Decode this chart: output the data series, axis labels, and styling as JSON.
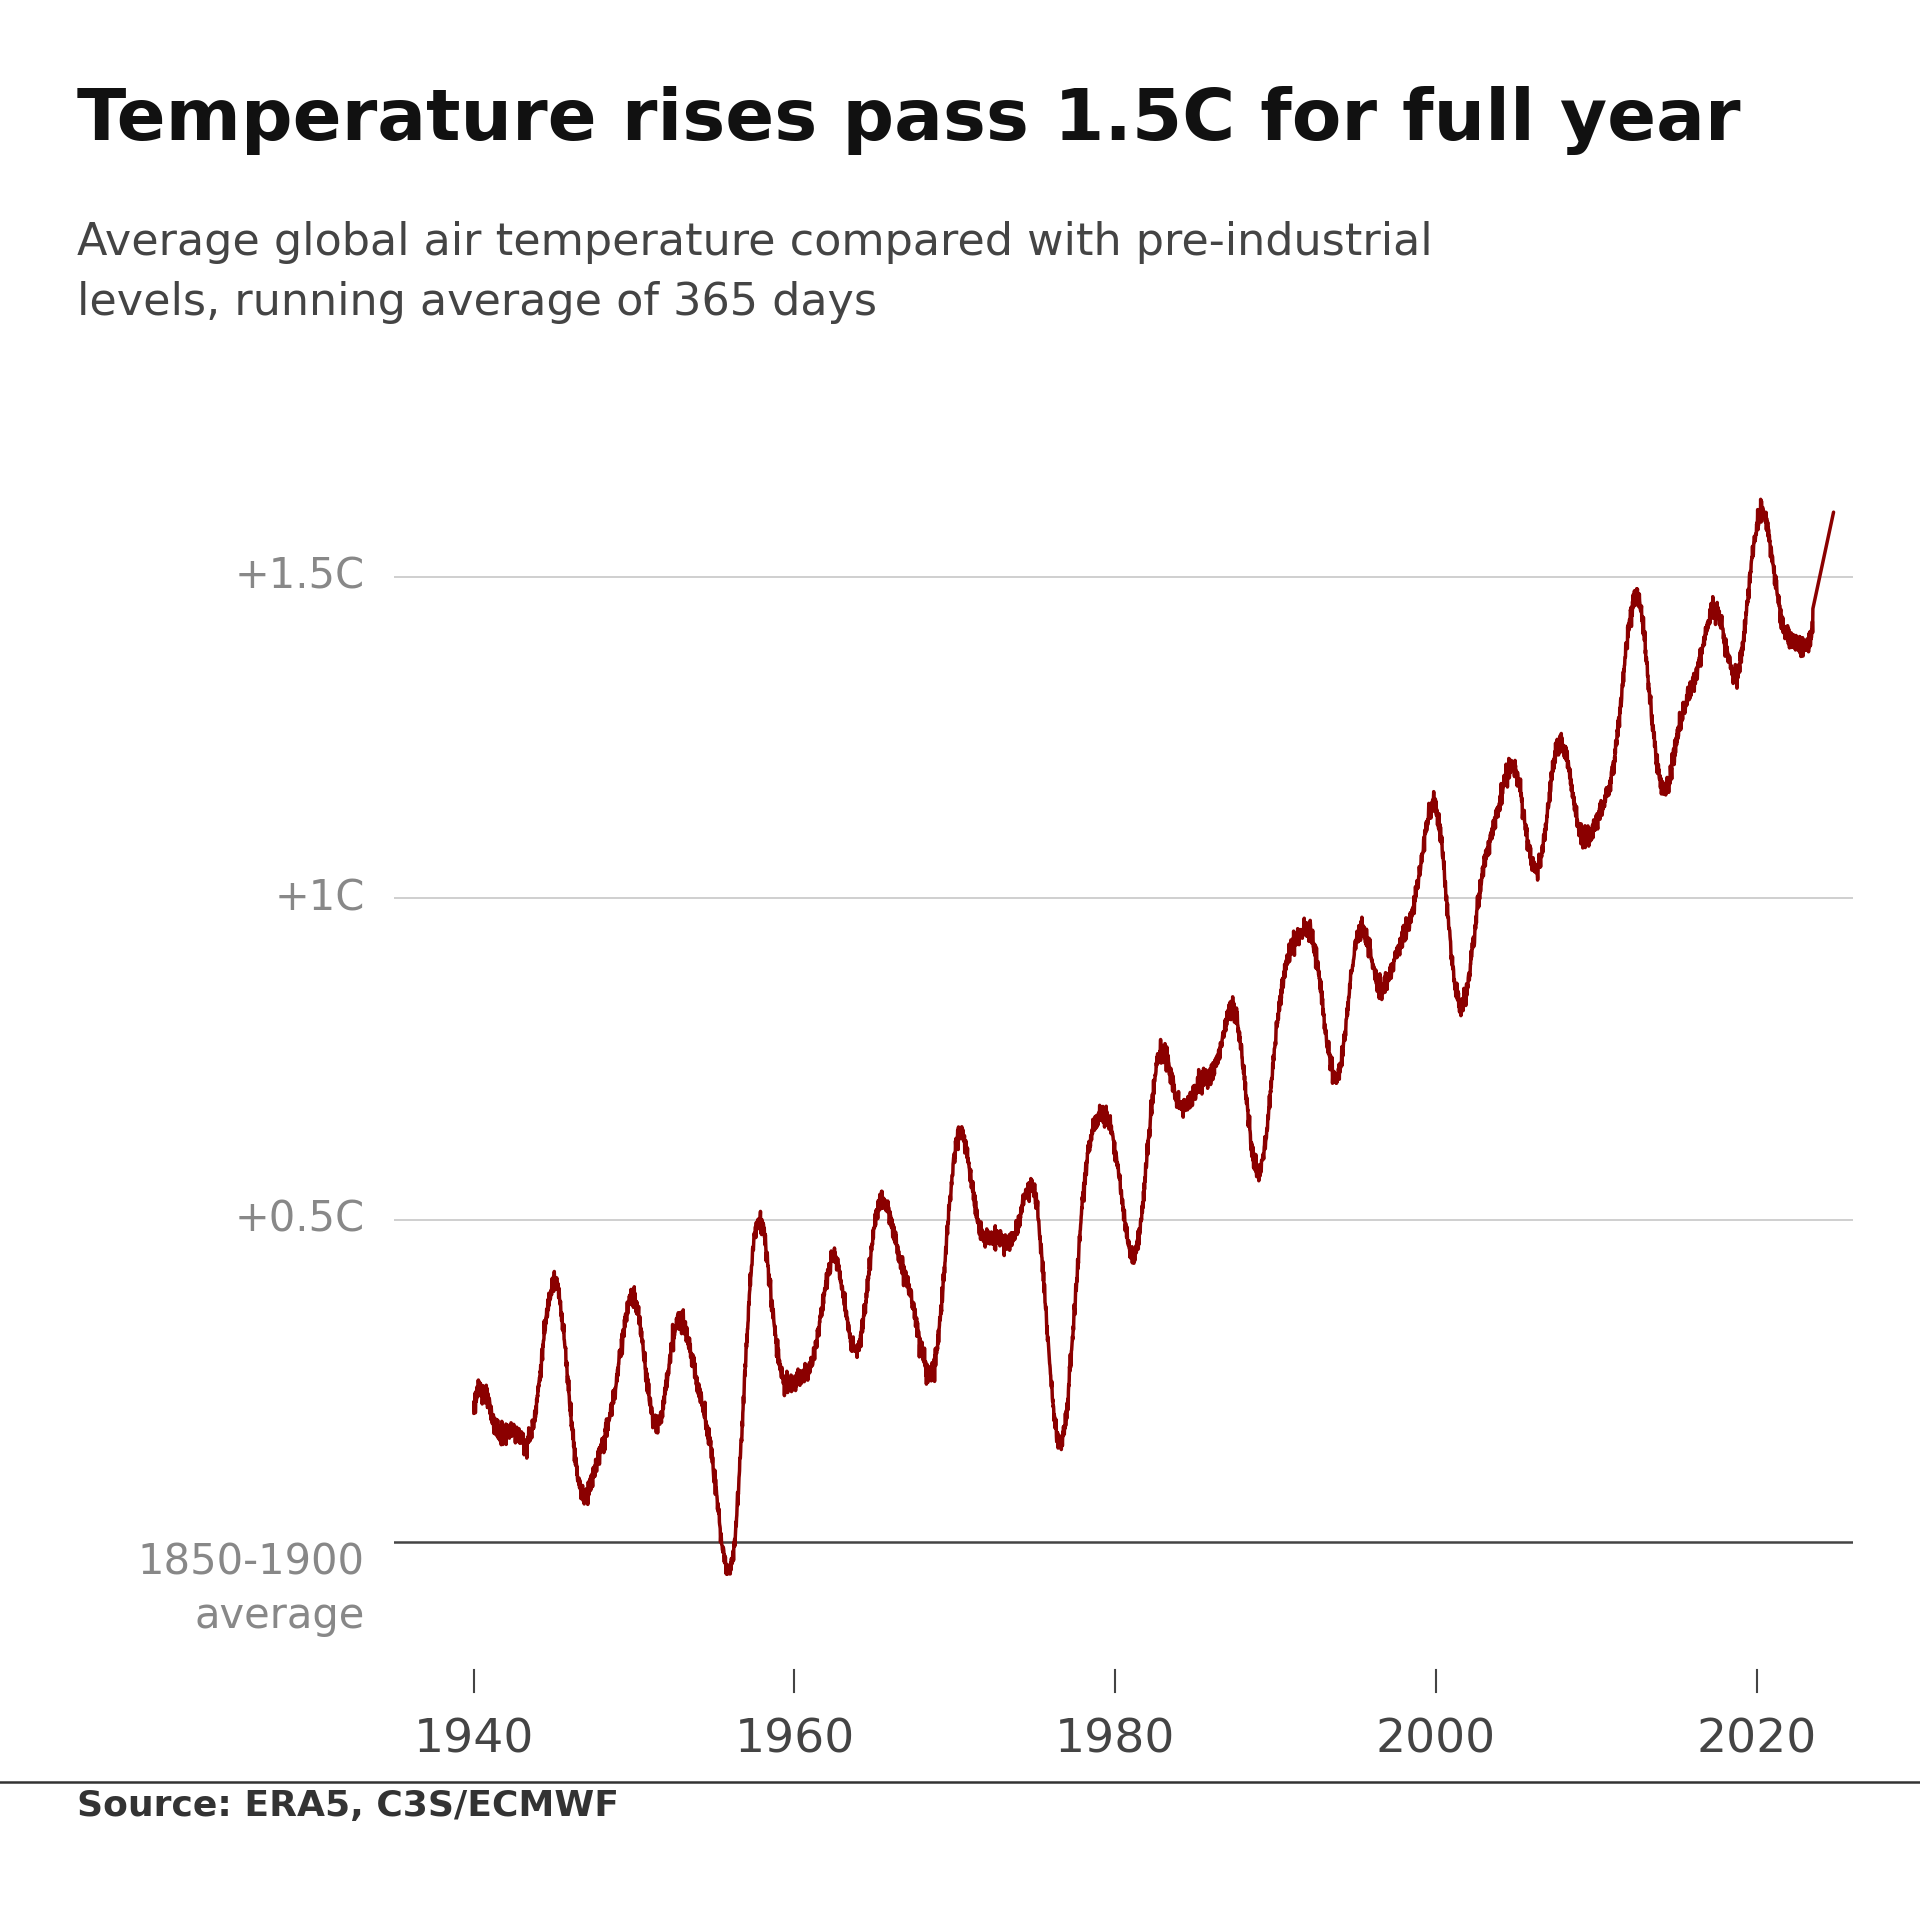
{
  "title": "Temperature rises pass 1.5C for full year",
  "subtitle": "Average global air temperature compared with pre-industrial\nlevels, running average of 365 days",
  "source": "Source: ERA5, C3S/ECMWF",
  "line_color": "#8B0000",
  "grid_color": "#cccccc",
  "axis_color": "#555555",
  "label_color": "#888888",
  "title_color": "#111111",
  "subtitle_color": "#444444",
  "ytick_labels": [
    "+1.5C",
    "+1C",
    "+0.5C"
  ],
  "ytick_values": [
    1.5,
    1.0,
    0.5
  ],
  "zero_label_line1": "1850-1900",
  "zero_label_line2": "average",
  "xtick_labels": [
    "1940",
    "1960",
    "1980",
    "2000",
    "2020"
  ],
  "xtick_values": [
    1940,
    1960,
    1980,
    2000,
    2020
  ],
  "xmin": 1935,
  "xmax": 2026,
  "ymin": -0.2,
  "ymax": 1.65,
  "title_fontsize": 52,
  "subtitle_fontsize": 32,
  "label_fontsize": 30,
  "xtick_fontsize": 34,
  "source_fontsize": 26,
  "line_width": 2.5,
  "background_color": "#ffffff"
}
